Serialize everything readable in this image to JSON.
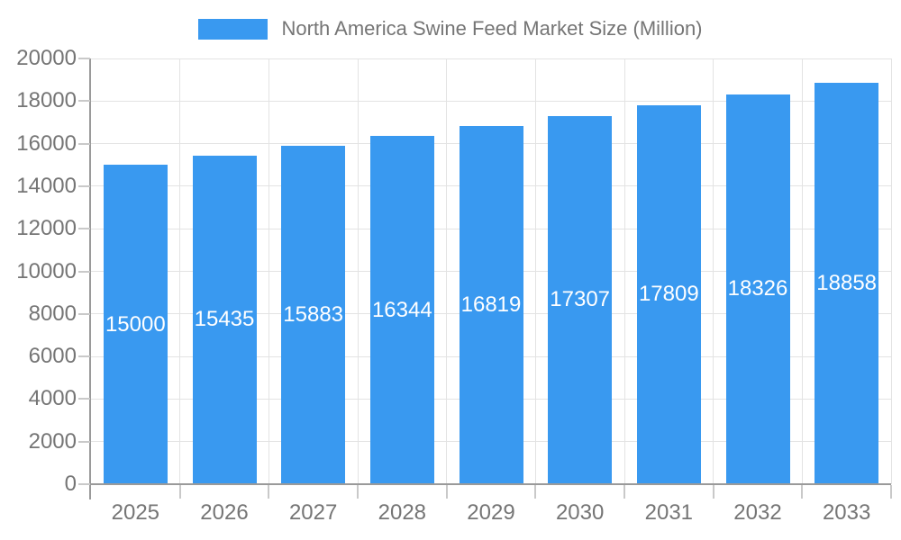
{
  "legend": {
    "label": "North America Swine Feed Market Size (Million)"
  },
  "chart_data": {
    "type": "bar",
    "title": "North America Swine Feed Market Size (Million)",
    "categories": [
      "2025",
      "2026",
      "2027",
      "2028",
      "2029",
      "2030",
      "2031",
      "2032",
      "2033"
    ],
    "values": [
      15000,
      15435,
      15883,
      16344,
      16819,
      17307,
      17809,
      18326,
      18858
    ],
    "value_labels": [
      "15000",
      "15435",
      "15883",
      "16344",
      "16819",
      "17307",
      "17809",
      "18326",
      "18858"
    ],
    "xlabel": "",
    "ylabel": "",
    "ylim": [
      0,
      20000
    ],
    "ytick_step": 2000,
    "ytick_labels": [
      "0",
      "2000",
      "4000",
      "6000",
      "8000",
      "10000",
      "12000",
      "14000",
      "16000",
      "18000",
      "20000"
    ],
    "grid": true,
    "legend_position": "top",
    "colors": {
      "bar": "#3999f0",
      "value_label": "#ffffff",
      "axis": "#9a9a9a",
      "gridline": "#e3e3e3",
      "tick": "#c9c9c9",
      "text": "#757575"
    }
  }
}
